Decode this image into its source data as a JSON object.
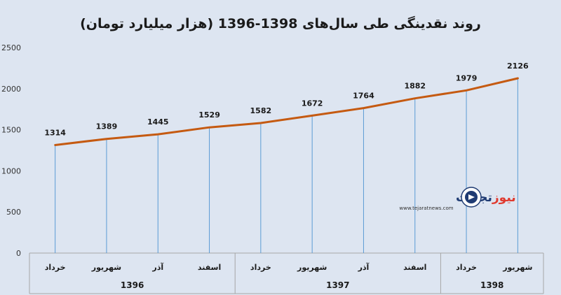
{
  "chart_data": {
    "type": "line",
    "title": "روند نقدینگی طی سال‌های 1398-1396 (هزار میلیارد تومان)",
    "xlabel": "",
    "ylabel": "",
    "ylim": [
      0,
      2500
    ],
    "yticks": [
      0,
      500,
      1000,
      1500,
      2000,
      2500
    ],
    "categories": [
      "خرداد",
      "شهریور",
      "آذر",
      "اسفند",
      "خرداد",
      "شهریور",
      "آذر",
      "اسفند",
      "خرداد",
      "شهریور"
    ],
    "groups": [
      {
        "label": "1396",
        "count": 4
      },
      {
        "label": "1397",
        "count": 4
      },
      {
        "label": "1398",
        "count": 2
      }
    ],
    "series": [
      {
        "values": [
          1314,
          1389,
          1445,
          1529,
          1582,
          1672,
          1764,
          1882,
          1979,
          2126
        ],
        "color": "#c55a11"
      }
    ],
    "drop_lines": true,
    "drop_line_color": "#5b9bd5",
    "grid": false,
    "legend": "none"
  },
  "watermark": {
    "name_part1": "تجارت",
    "name_part2": "نیوز",
    "url": "www.tejaratnews.com",
    "color_dark": "#1f3b73",
    "color_accent": "#e03a2f"
  }
}
